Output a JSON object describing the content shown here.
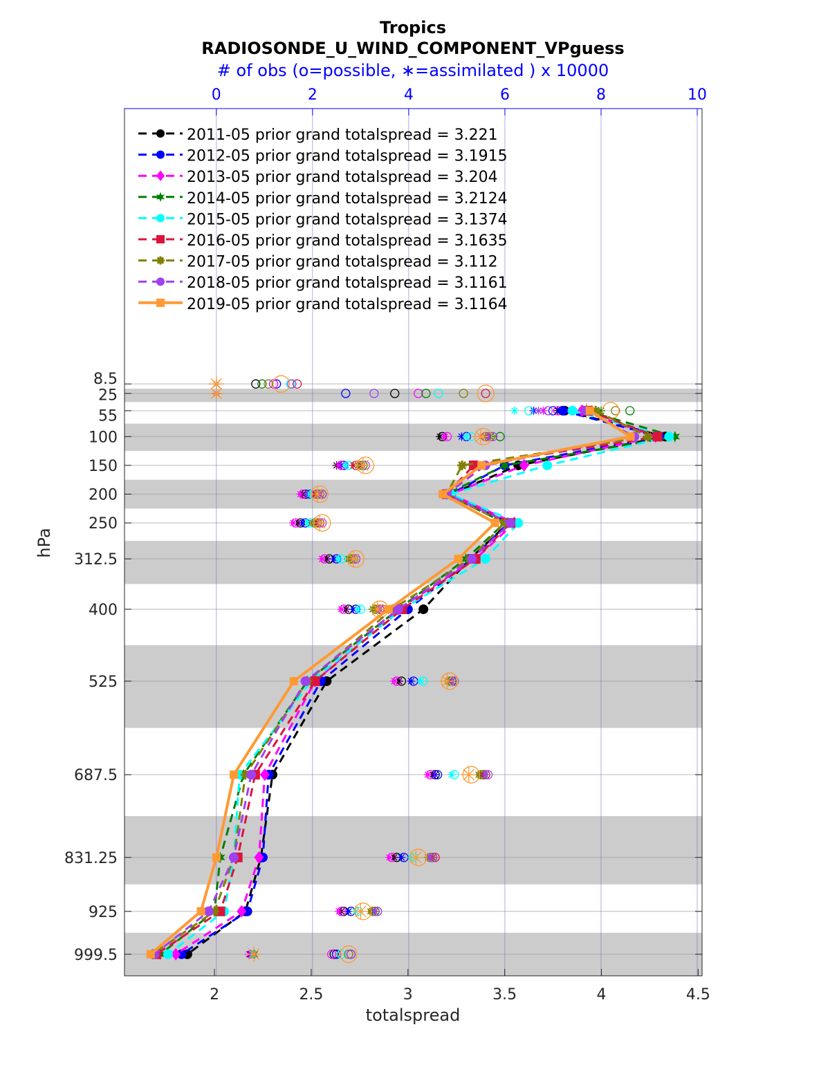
{
  "chart_data": {
    "type": "line",
    "title": "Tropics",
    "subtitle": "RADIOSONDE_U_WIND_COMPONENT_VPguess",
    "top_axis_label": "# of obs (o=possible, ∗=assimilated ) x 10000",
    "xlabel": "totalspread",
    "ylabel": "hPa",
    "xlim": [
      1.535,
      4.52
    ],
    "x_ticks": [
      2,
      2.5,
      3,
      3.5,
      4,
      4.5
    ],
    "x_tick_labels": [
      "2",
      "2.5",
      "3",
      "3.5",
      "4",
      "4.5"
    ],
    "top_xlim": [
      -1.91,
      10.1
    ],
    "top_ticks": [
      0,
      2,
      4,
      6,
      8,
      10
    ],
    "top_tick_labels": [
      "0",
      "2",
      "4",
      "6",
      "8",
      "10"
    ],
    "ylim": [
      -470,
      1037
    ],
    "y_reversed": true,
    "levels": [
      8.5,
      25,
      55,
      100,
      150,
      200,
      250,
      312.5,
      400,
      525,
      687.5,
      831.25,
      925,
      999.5
    ],
    "level_labels": [
      "8.5",
      "25",
      "55",
      "100",
      "150",
      "200",
      "250",
      "312.5",
      "400",
      "525",
      "687.5",
      "831.25",
      "925",
      "999.5"
    ],
    "spread_levels": [
      55,
      100,
      150,
      200,
      250,
      312.5,
      400,
      525,
      687.5,
      831.25,
      925,
      999.5
    ],
    "shaded_bands_at_levels": [
      25,
      100,
      200,
      312.5,
      525,
      831.25,
      999.5
    ],
    "top_axis_color": "#0000ff",
    "band_color": "#cccccc",
    "legend_placement": "top-left",
    "series": [
      {
        "name": "2011-05 prior grand totalspread = 3.221",
        "color": "#000000",
        "marker": "circle",
        "style": "dashed",
        "values": [
          3.81,
          4.33,
          3.57,
          3.22,
          3.52,
          3.32,
          3.08,
          2.58,
          2.3,
          2.24,
          2.16,
          1.86
        ],
        "possible": [
          0.82,
          3.71,
          7.2,
          4.7,
          2.6,
          1.85,
          1.75,
          2.35,
          2.75,
          3.85,
          4.55,
          3.75,
          2.65,
          2.45
        ],
        "assimilated": [
          0,
          0,
          7.1,
          4.65,
          2.5,
          1.8,
          1.7,
          2.3,
          2.7,
          3.8,
          4.5,
          3.7,
          2.6,
          0.7
        ]
      },
      {
        "name": "2012-05 prior grand totalspread = 3.1915",
        "color": "#0000ff",
        "marker": "circle",
        "style": "dashed",
        "values": [
          3.8,
          4.3,
          3.5,
          3.22,
          3.52,
          3.33,
          3.0,
          2.55,
          2.28,
          2.25,
          2.17,
          1.83
        ],
        "possible": [
          1.25,
          2.69,
          7.0,
          5.2,
          2.65,
          1.95,
          1.85,
          2.5,
          2.9,
          4.1,
          4.6,
          3.9,
          2.8,
          2.5
        ],
        "assimilated": [
          0,
          0,
          6.6,
          5.1,
          2.6,
          1.9,
          1.8,
          2.45,
          2.85,
          4.05,
          4.55,
          3.85,
          2.75,
          0.72
        ]
      },
      {
        "name": "2013-05 prior grand totalspread = 3.204",
        "color": "#ff00ff",
        "marker": "diamond",
        "style": "dashed",
        "values": [
          3.9,
          4.28,
          3.6,
          3.22,
          3.55,
          3.35,
          2.95,
          2.52,
          2.26,
          2.23,
          2.14,
          1.8
        ],
        "possible": [
          1.19,
          4.2,
          7.1,
          4.8,
          2.6,
          1.8,
          1.65,
          2.25,
          2.65,
          3.75,
          4.45,
          3.65,
          2.6,
          2.4
        ],
        "assimilated": [
          0,
          0,
          6.8,
          4.75,
          2.55,
          1.75,
          1.6,
          2.2,
          2.6,
          3.7,
          4.4,
          3.6,
          2.55,
          0.68
        ]
      },
      {
        "name": "2014-05 prior grand totalspread = 3.2124",
        "color": "#007f00",
        "marker": "hexagram",
        "style": "dashed",
        "values": [
          3.92,
          4.38,
          3.5,
          3.2,
          3.5,
          3.3,
          2.95,
          2.48,
          2.15,
          2.03,
          2.0,
          1.72
        ],
        "possible": [
          0.95,
          4.36,
          8.6,
          5.9,
          3.05,
          2.2,
          2.1,
          2.8,
          3.3,
          4.9,
          5.55,
          4.5,
          3.3,
          2.8
        ],
        "assimilated": [
          0,
          0,
          8.0,
          5.7,
          3.0,
          2.15,
          2.05,
          2.75,
          3.25,
          4.85,
          5.5,
          4.45,
          3.25,
          0.8
        ]
      },
      {
        "name": "2015-05 prior grand totalspread = 3.1374",
        "color": "#00ffff",
        "marker": "circle",
        "style": "dashed",
        "values": [
          3.85,
          4.35,
          3.72,
          3.22,
          3.57,
          3.4,
          2.97,
          2.5,
          2.13,
          2.1,
          2.05,
          1.76
        ],
        "possible": [
          1.54,
          4.62,
          6.5,
          5.3,
          2.75,
          2.0,
          1.95,
          2.6,
          3.0,
          4.3,
          4.95,
          4.1,
          2.95,
          2.6
        ],
        "assimilated": [
          0,
          0,
          6.2,
          5.2,
          2.7,
          1.95,
          1.9,
          2.55,
          2.95,
          4.25,
          4.9,
          4.05,
          2.9,
          0.75
        ]
      },
      {
        "name": "2016-05 prior grand totalspread = 3.1635",
        "color": "#dc143c",
        "marker": "square",
        "style": "dashed",
        "values": [
          3.93,
          4.29,
          3.34,
          3.2,
          3.53,
          3.35,
          2.97,
          2.52,
          2.21,
          2.12,
          2.03,
          1.7
        ],
        "possible": [
          1.68,
          5.6,
          7.7,
          5.6,
          2.9,
          2.1,
          2.15,
          2.9,
          3.4,
          4.95,
          5.6,
          4.55,
          3.35,
          2.8
        ],
        "assimilated": [
          0,
          0,
          7.6,
          5.5,
          2.85,
          2.05,
          2.1,
          2.85,
          3.35,
          4.9,
          5.55,
          4.5,
          3.3,
          0.78
        ]
      },
      {
        "name": "2017-05 prior grand totalspread = 3.112",
        "color": "#808000",
        "marker": "asterisk",
        "style": "dashed",
        "values": [
          3.97,
          4.24,
          3.28,
          3.2,
          3.5,
          3.32,
          2.92,
          2.48,
          2.16,
          2.1,
          2.0,
          1.68
        ],
        "possible": [
          1.08,
          5.14,
          8.3,
          5.7,
          3.0,
          2.15,
          2.05,
          2.85,
          3.35,
          4.85,
          5.5,
          4.45,
          3.25,
          2.75
        ],
        "assimilated": [
          0,
          0,
          7.4,
          5.6,
          2.95,
          2.1,
          2.0,
          2.8,
          3.3,
          4.8,
          5.45,
          4.4,
          3.2,
          0.77
        ]
      },
      {
        "name": "2018-05 prior grand totalspread = 3.1161",
        "color": "#a040f0",
        "marker": "circle",
        "style": "dashed",
        "values": [
          3.92,
          4.17,
          3.4,
          3.2,
          3.53,
          3.33,
          2.95,
          2.47,
          2.19,
          2.1,
          1.97,
          1.69
        ],
        "possible": [
          1.57,
          3.28,
          6.9,
          5.75,
          3.1,
          2.2,
          2.2,
          2.9,
          3.45,
          4.95,
          5.65,
          4.5,
          3.35,
          2.8
        ],
        "assimilated": [
          0,
          0,
          6.7,
          5.65,
          3.05,
          2.15,
          2.15,
          2.85,
          3.4,
          4.9,
          5.6,
          4.45,
          3.3,
          0.78
        ]
      },
      {
        "name": "2019-05 prior grand totalspread = 3.1164",
        "color": "#ff9933",
        "marker": "square",
        "style": "solid",
        "values": [
          3.94,
          4.15,
          3.38,
          3.18,
          3.45,
          3.26,
          2.9,
          2.41,
          2.1,
          2.01,
          1.93,
          1.67
        ],
        "possible": [
          1.35,
          5.6,
          8.2,
          5.55,
          3.1,
          2.15,
          2.2,
          2.9,
          3.4,
          4.85,
          5.3,
          4.2,
          3.05,
          2.75
        ],
        "assimilated": [
          0,
          0,
          7.7,
          5.5,
          3.05,
          2.1,
          2.15,
          2.85,
          3.35,
          4.8,
          5.25,
          4.15,
          3.0,
          0.78
        ]
      }
    ]
  }
}
